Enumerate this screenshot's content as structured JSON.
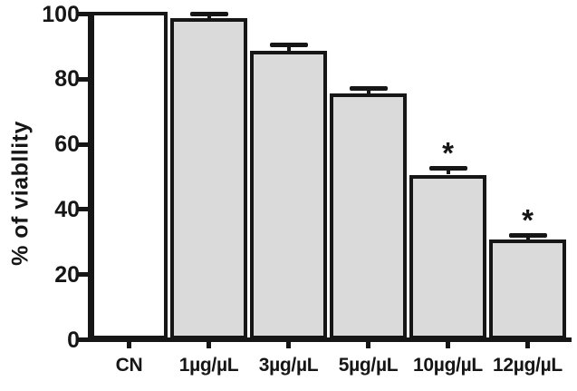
{
  "chart_data": {
    "type": "bar",
    "title": "",
    "xlabel": "",
    "ylabel": "% of viabllity",
    "categories": [
      "CN",
      "1µg/µL",
      "3µg/µL",
      "5µg/µL",
      "10µg/µL",
      "12µg/µL"
    ],
    "values": [
      100,
      98,
      88,
      75,
      50,
      30
    ],
    "errors": [
      0,
      1.5,
      2,
      1.5,
      2,
      1.5
    ],
    "error_bar_direction": "upper",
    "significance": [
      "",
      "",
      "",
      "",
      "*",
      "*"
    ],
    "bar_fill_colors": [
      "#ffffff",
      "#dadada",
      "#dadada",
      "#dadada",
      "#dadada",
      "#dadada"
    ],
    "bar_border_color": "#161616",
    "axis_color": "#161616",
    "background_color": "#ffffff",
    "ylim": [
      0,
      100
    ],
    "yticks": [
      0,
      20,
      40,
      60,
      80,
      100
    ],
    "grid": false,
    "legend": false
  }
}
